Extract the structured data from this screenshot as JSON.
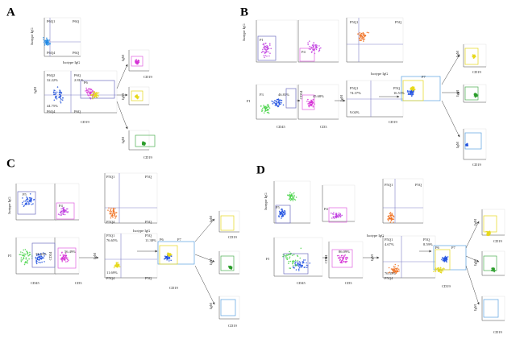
{
  "panels": [
    {
      "label": "A",
      "texts": [
        "P6Q1",
        "P6Q",
        "P6Q4",
        "P6Q",
        "Isotype IgG",
        "Isotype IgG",
        "P6Q2",
        "32.22%",
        "P6Q",
        "2.81%",
        "44.75%",
        "P6Q4",
        "P6Q",
        "IgM",
        "CD19",
        "P6",
        "IgM",
        "CD19",
        "IgM",
        "IgM",
        "CD19"
      ]
    },
    {
      "label": "B",
      "texts": [
        "P1",
        "Isotype IgG",
        "P4",
        "P5Q1",
        "P5Q",
        "Isotype IgG",
        "FI",
        "P3",
        "46.81%",
        "CD45",
        "CD34",
        "45.68%",
        "CD3",
        "P5Q1",
        "74.37%",
        "P5Q",
        "16.51%",
        "9.04%",
        "IgM",
        "CD19",
        "P7",
        "IgM",
        "CD19",
        "IgM",
        "IgM",
        "CD19"
      ]
    },
    {
      "label": "C",
      "texts": [
        "P5",
        "Isotype IgG",
        "P4",
        "P5Q1",
        "P5Q",
        "P5Q4",
        "P5Q",
        "Isotype IgG",
        "FI",
        "33.43%",
        "CD45",
        "CD34",
        "56.49%",
        "CD3",
        "P5Q1",
        "76.65%",
        "P5Q",
        "11.38%",
        "11.69%",
        "P5Q4",
        "P5Q",
        "IgM",
        "CD19",
        "P6",
        "P7",
        "IgM",
        "CD19",
        "IgM",
        "IgM",
        "CD19"
      ]
    },
    {
      "label": "D",
      "texts": [
        "P5",
        "Isotype IgG",
        "P4",
        "P5Q1",
        "P5Q",
        "Isotype IgG",
        "FI",
        "CD45",
        "CD34",
        "86.09%",
        "CD3",
        "P5Q1",
        "4.67%",
        "P5Q",
        "8.59%",
        "76.35%",
        "P5Q4",
        "IgM",
        "CD19",
        "P6",
        "P7",
        "IgM",
        "CD19",
        "IgM",
        "IgM",
        "CD19"
      ]
    }
  ]
}
